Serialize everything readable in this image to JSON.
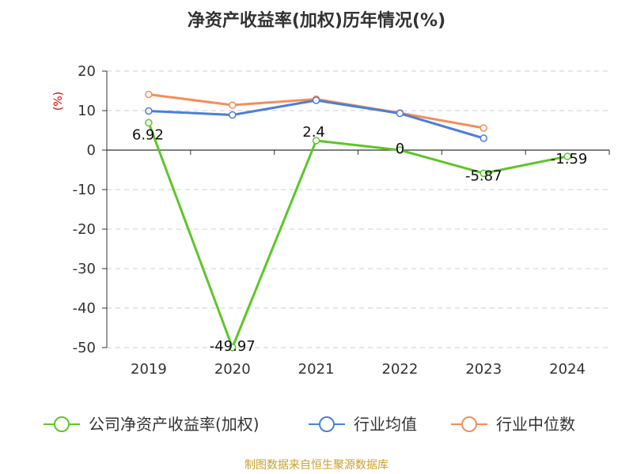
{
  "chart_data": {
    "type": "line",
    "title": "净资产收益率(加权)历年情况(%)",
    "ylabel": "(%)",
    "xlabel": "",
    "categories": [
      "2019",
      "2020",
      "2021",
      "2022",
      "2023",
      "2024"
    ],
    "ylim": [
      -50,
      20
    ],
    "yticks": [
      20,
      10,
      0,
      -10,
      -20,
      -30,
      -40,
      -50
    ],
    "grid": true,
    "legend_position": "bottom",
    "series": [
      {
        "name": "公司净资产收益率(加权)",
        "color": "#5cc629",
        "values": [
          6.92,
          -49.97,
          2.4,
          0,
          -5.87,
          -1.59
        ],
        "labels": [
          "6.92",
          "-49.97",
          "2.4",
          "0",
          "-5.87",
          "-1.59"
        ]
      },
      {
        "name": "行业均值",
        "color": "#4c7fd8",
        "values": [
          9.9,
          8.9,
          12.6,
          9.3,
          3.0,
          null
        ]
      },
      {
        "name": "行业中位数",
        "color": "#f58d5a",
        "values": [
          14.1,
          11.4,
          12.9,
          9.4,
          5.6,
          null
        ]
      }
    ],
    "source": "制图数据来自恒生聚源数据库"
  }
}
